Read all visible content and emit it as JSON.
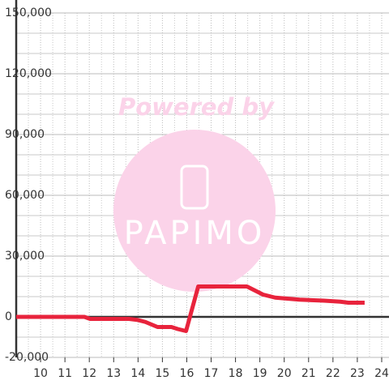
{
  "chart_data": {
    "type": "line",
    "watermark": {
      "text": "Powered by",
      "logo": "PAPIMO"
    },
    "x": [
      9,
      11.8,
      12.03,
      13.63,
      13.97,
      14.3,
      14.8,
      15.37,
      15.63,
      15.97,
      16.47,
      18.47,
      18.8,
      19.13,
      19.63,
      20.13,
      20.63,
      21.63,
      22.3,
      22.63,
      23.3
    ],
    "series": [
      {
        "color": "#e8233c",
        "values": [
          0,
          0,
          -1000,
          -1000,
          -1500,
          -2500,
          -5000,
          -5000,
          -6000,
          -7000,
          15000,
          15000,
          13000,
          11000,
          9500,
          9000,
          8500,
          8000,
          7500,
          7000,
          7000
        ]
      }
    ],
    "xlim": [
      9,
      24.3
    ],
    "ylim": [
      -20000,
      150000
    ],
    "xticks": [
      10,
      11,
      12,
      13,
      14,
      15,
      16,
      17,
      18,
      19,
      20,
      21,
      22,
      23,
      24
    ],
    "x_minor_ticks": [
      9.5,
      10.5,
      11.5,
      12.5,
      13.5,
      14.5,
      15.5,
      16.5,
      17.5,
      18.5,
      19.5,
      20.5,
      21.5,
      22.5,
      23.5
    ],
    "yticks": [
      {
        "value": -20000,
        "label": "-20,000"
      },
      {
        "value": 0,
        "label": "0"
      },
      {
        "value": 30000,
        "label": "30,000"
      },
      {
        "value": 60000,
        "label": "60,000"
      },
      {
        "value": 90000,
        "label": "90,000"
      },
      {
        "value": 120000,
        "label": "120,000"
      },
      {
        "value": 150000,
        "label": "150,000"
      }
    ],
    "y_minor_ticks": [
      -10000,
      10000,
      20000,
      40000,
      50000,
      70000,
      80000,
      100000,
      110000,
      130000,
      140000
    ],
    "grid": true
  }
}
